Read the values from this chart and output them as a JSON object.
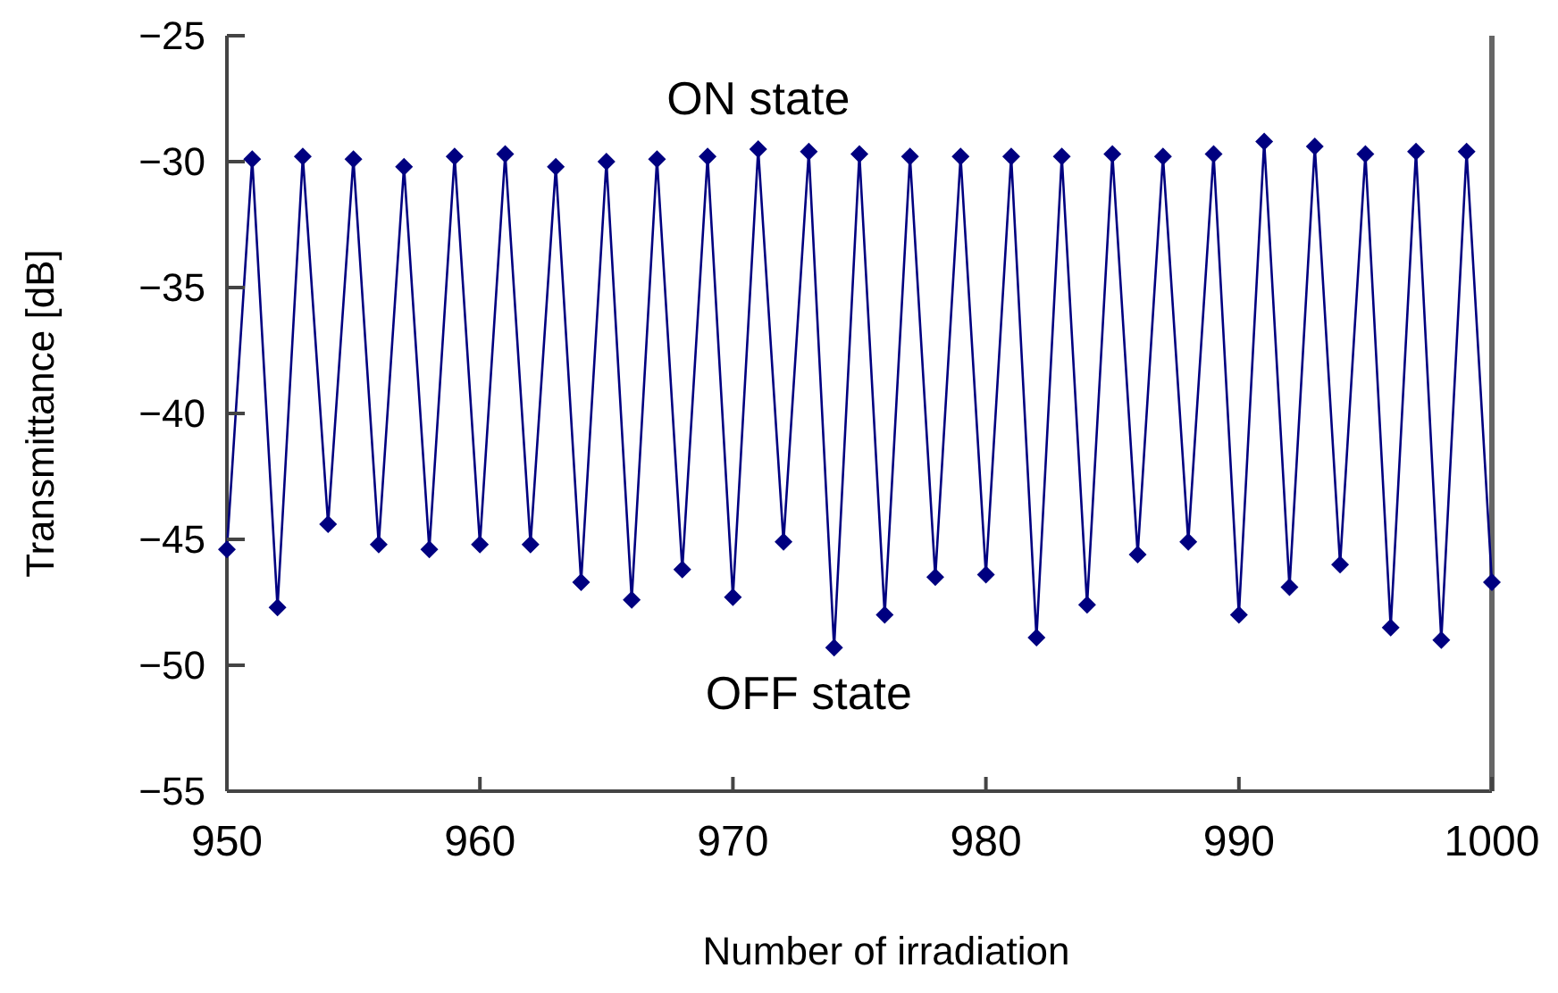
{
  "chart_data": {
    "type": "line",
    "xlabel": "Number of irradiation",
    "ylabel": "Transmittance [dB]",
    "annotations": [
      "ON state",
      "OFF state"
    ],
    "x": [
      950,
      951,
      952,
      953,
      954,
      955,
      956,
      957,
      958,
      959,
      960,
      961,
      962,
      963,
      964,
      965,
      966,
      967,
      968,
      969,
      970,
      971,
      972,
      973,
      974,
      975,
      976,
      977,
      978,
      979,
      980,
      981,
      982,
      983,
      984,
      985,
      986,
      987,
      988,
      989,
      990,
      991,
      992,
      993,
      994,
      995,
      996,
      997,
      998,
      999,
      1000
    ],
    "series": [
      {
        "color": "#000080",
        "values": [
          -45.4,
          -29.9,
          -47.7,
          -29.8,
          -44.4,
          -29.9,
          -45.2,
          -30.2,
          -45.4,
          -29.8,
          -45.2,
          -29.7,
          -45.2,
          -30.2,
          -46.7,
          -30.0,
          -47.4,
          -29.9,
          -46.2,
          -29.8,
          -47.3,
          -29.5,
          -45.1,
          -29.6,
          -49.3,
          -29.7,
          -48.0,
          -29.8,
          -46.5,
          -29.8,
          -46.4,
          -29.8,
          -48.9,
          -29.8,
          -47.6,
          -29.7,
          -45.6,
          -29.8,
          -45.1,
          -29.7,
          -48.0,
          -29.2,
          -46.9,
          -29.4,
          -46.0,
          -29.7,
          -48.5,
          -29.6,
          -49.0,
          -29.6,
          -46.7
        ]
      }
    ],
    "xlim": [
      950,
      1000
    ],
    "xticks": [
      950,
      960,
      970,
      980,
      990,
      1000
    ],
    "ylim": [
      -55,
      -25
    ],
    "yticks": [
      -55,
      -50,
      -45,
      -40,
      -35,
      -30,
      -25
    ],
    "grid": false,
    "marker": "diamond",
    "line_style": "solid"
  }
}
